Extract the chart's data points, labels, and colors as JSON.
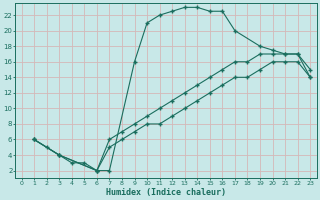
{
  "xlabel": "Humidex (Indice chaleur)",
  "bg_color": "#c8e8e8",
  "grid_color": "#d4b8b8",
  "line_color": "#1a6e5e",
  "xlim": [
    -0.5,
    23.5
  ],
  "ylim": [
    1,
    23.5
  ],
  "xticks": [
    0,
    1,
    2,
    3,
    4,
    5,
    6,
    7,
    8,
    9,
    10,
    11,
    12,
    13,
    14,
    15,
    16,
    17,
    18,
    19,
    20,
    21,
    22,
    23
  ],
  "yticks": [
    2,
    4,
    6,
    8,
    10,
    12,
    14,
    16,
    18,
    20,
    22
  ],
  "line1_x": [
    1,
    2,
    3,
    4,
    5,
    6,
    7,
    9,
    10,
    11,
    12,
    13,
    14,
    15,
    16,
    17,
    19,
    20,
    21,
    22,
    23
  ],
  "line1_y": [
    6,
    5,
    4,
    3,
    3,
    2,
    2,
    16,
    21,
    22,
    22.5,
    23,
    23,
    22.5,
    22.5,
    20,
    18,
    17.5,
    17,
    17,
    14
  ],
  "line2_x": [
    1,
    3,
    6,
    7,
    8,
    9,
    10,
    11,
    12,
    13,
    14,
    15,
    16,
    17,
    18,
    19,
    20,
    21,
    22,
    23
  ],
  "line2_y": [
    6,
    4,
    2,
    6,
    7,
    8,
    9,
    10,
    11,
    12,
    13,
    14,
    15,
    16,
    16,
    17,
    17,
    17,
    17,
    15
  ],
  "line3_x": [
    1,
    3,
    6,
    7,
    8,
    9,
    10,
    11,
    12,
    13,
    14,
    15,
    16,
    17,
    18,
    19,
    20,
    21,
    22,
    23
  ],
  "line3_y": [
    6,
    4,
    2,
    5,
    6,
    7,
    8,
    8,
    9,
    10,
    11,
    12,
    13,
    14,
    14,
    15,
    16,
    16,
    16,
    14
  ]
}
